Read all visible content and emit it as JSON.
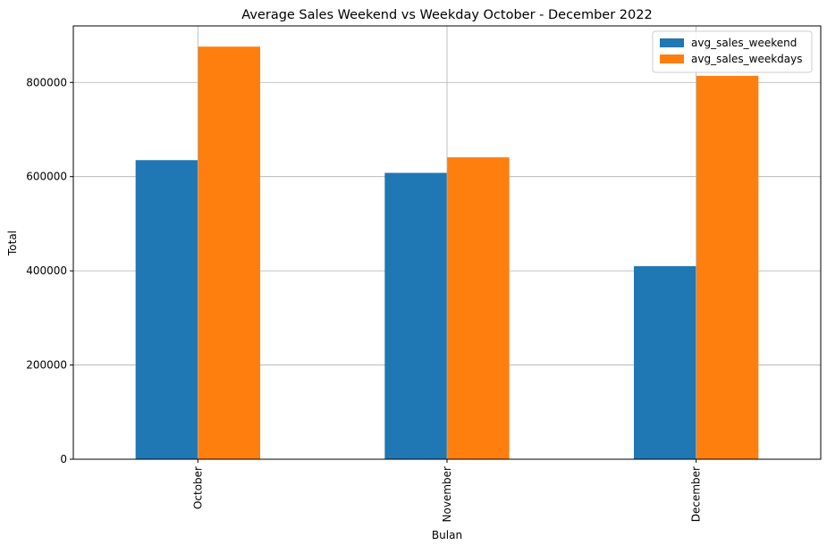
{
  "chart_data": {
    "type": "bar",
    "title": "Average Sales Weekend vs Weekday October - December 2022",
    "xlabel": "Bulan",
    "ylabel": "Total",
    "categories": [
      "October",
      "November",
      "December"
    ],
    "series": [
      {
        "name": "avg_sales_weekend",
        "color": "#1f77b4",
        "values": [
          635000,
          608000,
          410000
        ]
      },
      {
        "name": "avg_sales_weekdays",
        "color": "#ff7f0e",
        "values": [
          876000,
          641000,
          814000
        ]
      }
    ],
    "ylim": [
      0,
      920000
    ],
    "yticks": [
      0,
      200000,
      400000,
      600000,
      800000
    ],
    "ytick_labels": [
      "0",
      "200000",
      "400000",
      "600000",
      "800000"
    ],
    "grid": true,
    "legend_position": "top-right"
  }
}
